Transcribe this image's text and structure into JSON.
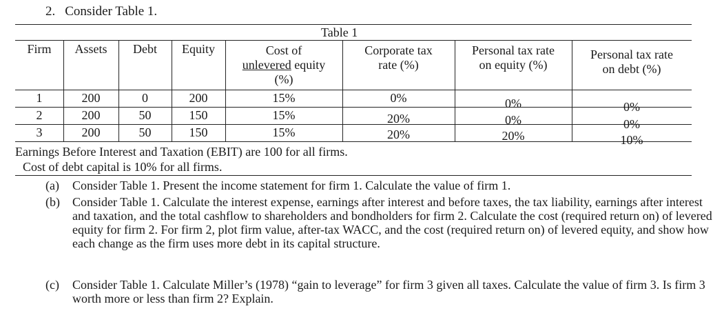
{
  "heading": {
    "number": "2.",
    "title": "Consider Table 1."
  },
  "table": {
    "caption": "Table 1",
    "headers": {
      "firm": "Firm",
      "assets": "Assets",
      "debt": "Debt",
      "equity": "Equity",
      "cost_unlevered_1": "Cost of",
      "cost_unlevered_2a": "unlevered",
      "cost_unlevered_2b": " equity",
      "cost_unlevered_3": "(%)",
      "corp_tax_1": "Corporate tax",
      "corp_tax_2": "rate (%)",
      "pers_eq_1": "Personal tax rate",
      "pers_eq_2": "on equity (%)",
      "pers_debt_1": "Personal tax rate",
      "pers_debt_2": "on debt (%)"
    },
    "rows": [
      {
        "firm": "1",
        "assets": "200",
        "debt": "0",
        "equity": "200",
        "cost": "15%",
        "corp": "0%",
        "pers_eq": "0%",
        "pers_debt": "0%"
      },
      {
        "firm": "2",
        "assets": "200",
        "debt": "50",
        "equity": "150",
        "cost": "15%",
        "corp": "20%",
        "pers_eq": "0%",
        "pers_debt": "0%"
      },
      {
        "firm": "3",
        "assets": "200",
        "debt": "50",
        "equity": "150",
        "cost": "15%",
        "corp": "20%",
        "pers_eq": "20%",
        "pers_debt": "10%"
      }
    ]
  },
  "notes": {
    "ebit": "Earnings Before Interest and Taxation (EBIT) are 100 for all firms.",
    "debt_cost": "Cost of debt capital is 10% for all firms."
  },
  "questions": [
    {
      "label": "(a)",
      "text": "Consider Table 1. Present the income statement for firm 1. Calculate the value of firm 1."
    },
    {
      "label": "(b)",
      "text": "Consider Table 1. Calculate the interest expense, earnings after interest and before taxes, the tax liability, earnings after interest and taxation, and the total cashflow to shareholders and bondholders for firm 2. Calculate the cost (required return on) of levered equity for firm 2. For firm 2, plot firm value, after-tax WACC, and the cost (required return on) of levered equity, and show how each change as the firm uses more debt in its capital structure."
    },
    {
      "label": "(c)",
      "text": "Consider Table 1. Calculate Miller’s (1978) “gain to leverage” for firm 3 given all taxes. Calculate the value of firm 3. Is firm 3 worth more or less than firm 2? Explain."
    }
  ]
}
